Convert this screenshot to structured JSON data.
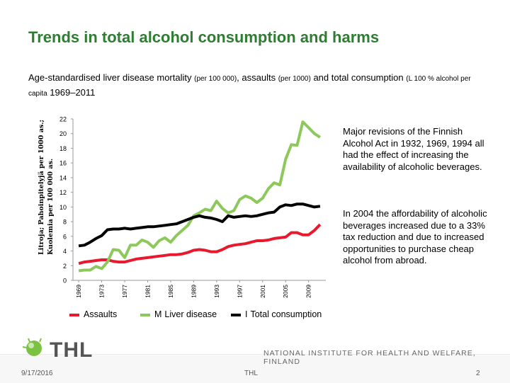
{
  "slide": {
    "title": "Trends in total alcohol consumption and harms",
    "subtitle_part1": "Age-standardised liver disease mortality ",
    "subtitle_part2": "(per 100 000)",
    "subtitle_part3": ", assaults ",
    "subtitle_part4": "(per 1000)",
    "subtitle_part5": " and total consumption ",
    "subtitle_part6": "(L 100 % alcohol per capita",
    "subtitle_part7": " 1969–2011",
    "ylabel_line1": "Litroja; Pahoinpitelyjä per 1000 as.;",
    "ylabel_line2": "Kuolemia per 100 000 as.",
    "note1": "Major revisions of the Finnish Alcohol Act in 1932, 1969, 1994 all had the effect of increasing the availability of alcoholic beverages.",
    "note2": "In 2004 the affordability of alcoholic beverages increased due to a 33% tax reduction and due to increased opportunities to purchase cheap alcohol from abroad.",
    "legend": {
      "assaults": "Assaults",
      "liver_prefix": "M",
      "liver": "Liver disease",
      "consumption_prefix": "I",
      "consumption": "Total consumption"
    },
    "logo_text": "THL",
    "institute": "NATIONAL INSTITUTE FOR HEALTH AND WELFARE, FINLAND",
    "footer_date": "9/17/2016",
    "footer_mid": "THL",
    "footer_page": "2",
    "colors": {
      "title": "#2e7d32",
      "assaults": "#e8192c",
      "liver": "#8dc85a",
      "consumption": "#000000"
    }
  },
  "chart_data": {
    "type": "line",
    "x": [
      1969,
      1970,
      1971,
      1972,
      1973,
      1974,
      1975,
      1976,
      1977,
      1978,
      1979,
      1980,
      1981,
      1982,
      1983,
      1984,
      1985,
      1986,
      1987,
      1988,
      1989,
      1990,
      1991,
      1992,
      1993,
      1994,
      1995,
      1996,
      1997,
      1998,
      1999,
      2000,
      2001,
      2002,
      2003,
      2004,
      2005,
      2006,
      2007,
      2008,
      2009,
      2010,
      2011
    ],
    "x_ticks": [
      1969,
      1973,
      1977,
      1981,
      1985,
      1989,
      1993,
      1997,
      2001,
      2005,
      2009
    ],
    "ylim": [
      0,
      22
    ],
    "y_ticks": [
      0,
      2,
      4,
      6,
      8,
      10,
      12,
      14,
      16,
      18,
      20,
      22
    ],
    "series": [
      {
        "name": "Assaults",
        "color": "#e8192c",
        "values": [
          2.3,
          2.5,
          2.6,
          2.7,
          2.8,
          2.8,
          2.6,
          2.5,
          2.5,
          2.7,
          2.9,
          3.0,
          3.1,
          3.2,
          3.3,
          3.4,
          3.5,
          3.5,
          3.6,
          3.8,
          4.1,
          4.2,
          4.1,
          3.9,
          3.9,
          4.2,
          4.6,
          4.8,
          4.9,
          5.0,
          5.2,
          5.4,
          5.4,
          5.5,
          5.7,
          5.8,
          5.9,
          6.5,
          6.5,
          6.2,
          6.2,
          6.8,
          7.6
        ]
      },
      {
        "name": "Liver disease",
        "color": "#8dc85a",
        "values": [
          1.3,
          1.4,
          1.4,
          1.9,
          1.6,
          2.5,
          4.2,
          4.1,
          3.1,
          4.8,
          4.8,
          5.5,
          5.2,
          4.5,
          5.4,
          5.8,
          5.2,
          6.1,
          6.8,
          7.5,
          8.8,
          9.2,
          9.7,
          9.5,
          10.8,
          9.8,
          9.2,
          9.5,
          11.0,
          11.5,
          11.2,
          10.6,
          11.2,
          12.5,
          13.3,
          13.0,
          16.5,
          18.5,
          18.4,
          21.6,
          20.8,
          20.0,
          19.5
        ]
      },
      {
        "name": "Total consumption",
        "color": "#000000",
        "values": [
          4.7,
          4.8,
          5.2,
          5.7,
          6.1,
          6.9,
          7.0,
          7.0,
          7.1,
          7.0,
          7.1,
          7.2,
          7.3,
          7.3,
          7.4,
          7.5,
          7.6,
          7.7,
          8.0,
          8.3,
          8.6,
          8.8,
          8.6,
          8.5,
          8.3,
          8.0,
          8.8,
          8.6,
          8.7,
          8.8,
          8.7,
          8.8,
          9.0,
          9.2,
          9.3,
          10.0,
          10.3,
          10.2,
          10.4,
          10.4,
          10.2,
          10.0,
          10.1
        ]
      }
    ]
  }
}
